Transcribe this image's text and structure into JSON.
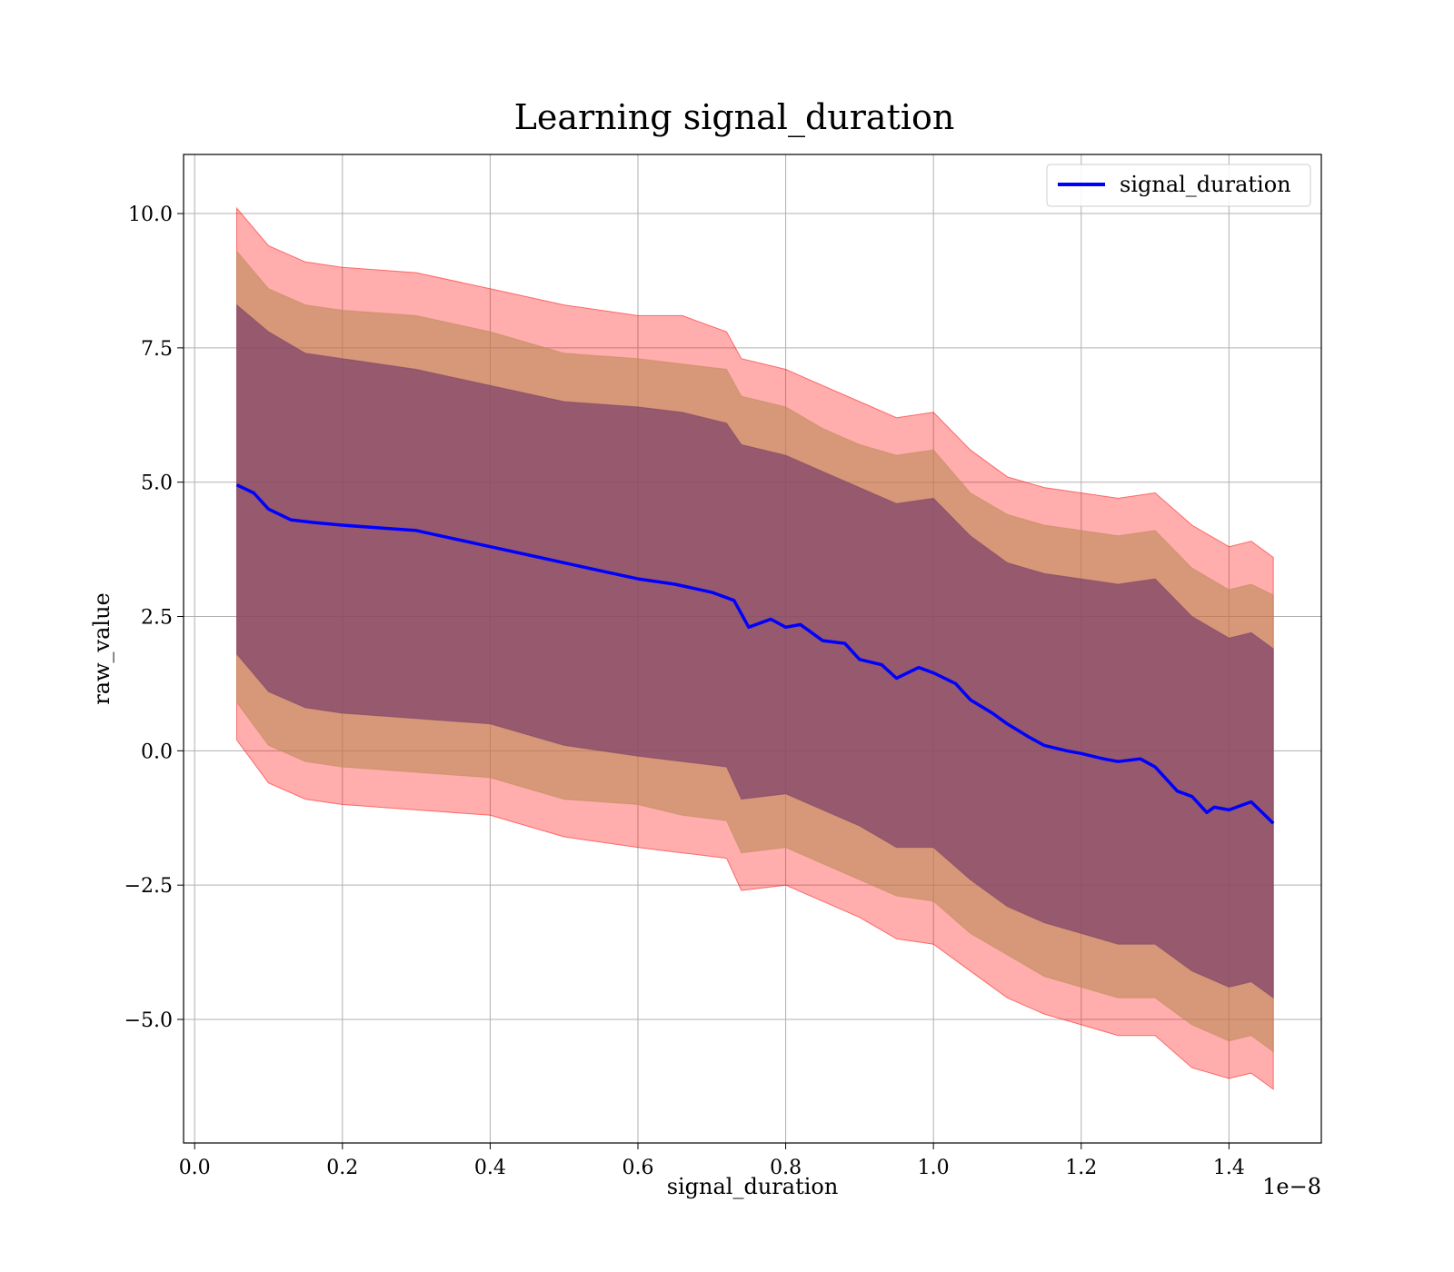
{
  "chart_data": {
    "type": "line",
    "title": "Learning signal_duration",
    "xlabel": "signal_duration",
    "ylabel": "raw_value",
    "x_offset_label": "1e−8",
    "xlim": [
      -0.015,
      1.525
    ],
    "ylim": [
      -7.3,
      11.1
    ],
    "grid": true,
    "legend_position": "top-right",
    "x_ticks": [
      {
        "value": 0.0,
        "label": "0.0"
      },
      {
        "value": 0.2,
        "label": "0.2"
      },
      {
        "value": 0.4,
        "label": "0.4"
      },
      {
        "value": 0.6,
        "label": "0.6"
      },
      {
        "value": 0.8,
        "label": "0.8"
      },
      {
        "value": 1.0,
        "label": "1.0"
      },
      {
        "value": 1.2,
        "label": "1.2"
      },
      {
        "value": 1.4,
        "label": "1.4"
      }
    ],
    "y_ticks": [
      {
        "value": 10.0,
        "label": "10.0"
      },
      {
        "value": 7.5,
        "label": "7.5"
      },
      {
        "value": 5.0,
        "label": "5.0"
      },
      {
        "value": 2.5,
        "label": "2.5"
      },
      {
        "value": 0.0,
        "label": "0.0"
      },
      {
        "value": -2.5,
        "label": "−2.5"
      },
      {
        "value": -5.0,
        "label": "−5.0"
      }
    ],
    "series": [
      {
        "name": "signal_duration",
        "color": "#0000ff",
        "x": [
          0.057,
          0.08,
          0.1,
          0.13,
          0.16,
          0.2,
          0.25,
          0.3,
          0.35,
          0.4,
          0.45,
          0.5,
          0.55,
          0.6,
          0.65,
          0.7,
          0.73,
          0.75,
          0.78,
          0.8,
          0.82,
          0.85,
          0.88,
          0.9,
          0.93,
          0.95,
          0.98,
          1.0,
          1.03,
          1.05,
          1.08,
          1.1,
          1.13,
          1.15,
          1.18,
          1.2,
          1.23,
          1.25,
          1.28,
          1.3,
          1.33,
          1.35,
          1.37,
          1.38,
          1.4,
          1.43,
          1.46
        ],
        "values": [
          4.95,
          4.8,
          4.5,
          4.3,
          4.25,
          4.2,
          4.15,
          4.1,
          3.95,
          3.8,
          3.65,
          3.5,
          3.35,
          3.2,
          3.1,
          2.95,
          2.8,
          2.3,
          2.45,
          2.3,
          2.35,
          2.05,
          2.0,
          1.7,
          1.6,
          1.35,
          1.55,
          1.45,
          1.25,
          0.95,
          0.7,
          0.5,
          0.25,
          0.1,
          0.0,
          -0.05,
          -0.15,
          -0.2,
          -0.15,
          -0.3,
          -0.75,
          -0.85,
          -1.15,
          -1.05,
          -1.1,
          -0.95,
          -1.35
        ]
      }
    ],
    "bands": [
      {
        "color": "#ff0000",
        "opacity": 0.32,
        "x": [
          0.057,
          0.1,
          0.15,
          0.2,
          0.3,
          0.4,
          0.5,
          0.6,
          0.66,
          0.72,
          0.74,
          0.8,
          0.85,
          0.9,
          0.95,
          1.0,
          1.05,
          1.1,
          1.15,
          1.2,
          1.25,
          1.3,
          1.35,
          1.4,
          1.43,
          1.46
        ],
        "upper": [
          10.1,
          9.4,
          9.1,
          9.0,
          8.9,
          8.6,
          8.3,
          8.1,
          8.1,
          7.8,
          7.3,
          7.1,
          6.8,
          6.5,
          6.2,
          6.3,
          5.6,
          5.1,
          4.9,
          4.8,
          4.7,
          4.8,
          4.2,
          3.8,
          3.9,
          3.6
        ],
        "lower": [
          0.2,
          -0.6,
          -0.9,
          -1.0,
          -1.1,
          -1.2,
          -1.6,
          -1.8,
          -1.9,
          -2.0,
          -2.6,
          -2.5,
          -2.8,
          -3.1,
          -3.5,
          -3.6,
          -4.1,
          -4.6,
          -4.9,
          -5.1,
          -5.3,
          -5.3,
          -5.9,
          -6.1,
          -6.0,
          -6.3
        ]
      },
      {
        "color": "#bb8b55",
        "opacity": 0.6,
        "x": [
          0.057,
          0.1,
          0.15,
          0.2,
          0.3,
          0.4,
          0.5,
          0.6,
          0.66,
          0.72,
          0.74,
          0.8,
          0.85,
          0.9,
          0.95,
          1.0,
          1.05,
          1.1,
          1.15,
          1.2,
          1.25,
          1.3,
          1.35,
          1.4,
          1.43,
          1.46
        ],
        "upper": [
          9.3,
          8.6,
          8.3,
          8.2,
          8.1,
          7.8,
          7.4,
          7.3,
          7.2,
          7.1,
          6.6,
          6.4,
          6.0,
          5.7,
          5.5,
          5.6,
          4.8,
          4.4,
          4.2,
          4.1,
          4.0,
          4.1,
          3.4,
          3.0,
          3.1,
          2.9
        ],
        "lower": [
          0.9,
          0.1,
          -0.2,
          -0.3,
          -0.4,
          -0.5,
          -0.9,
          -1.0,
          -1.2,
          -1.3,
          -1.9,
          -1.8,
          -2.1,
          -2.4,
          -2.7,
          -2.8,
          -3.4,
          -3.8,
          -4.2,
          -4.4,
          -4.6,
          -4.6,
          -5.1,
          -5.4,
          -5.3,
          -5.6
        ]
      },
      {
        "color": "#7b3f6a",
        "opacity": 0.7,
        "x": [
          0.057,
          0.1,
          0.15,
          0.2,
          0.3,
          0.4,
          0.5,
          0.6,
          0.66,
          0.72,
          0.74,
          0.8,
          0.85,
          0.9,
          0.95,
          1.0,
          1.05,
          1.1,
          1.15,
          1.2,
          1.25,
          1.3,
          1.35,
          1.4,
          1.43,
          1.46
        ],
        "upper": [
          8.3,
          7.8,
          7.4,
          7.3,
          7.1,
          6.8,
          6.5,
          6.4,
          6.3,
          6.1,
          5.7,
          5.5,
          5.2,
          4.9,
          4.6,
          4.7,
          4.0,
          3.5,
          3.3,
          3.2,
          3.1,
          3.2,
          2.5,
          2.1,
          2.2,
          1.9
        ],
        "lower": [
          1.8,
          1.1,
          0.8,
          0.7,
          0.6,
          0.5,
          0.1,
          -0.1,
          -0.2,
          -0.3,
          -0.9,
          -0.8,
          -1.1,
          -1.4,
          -1.8,
          -1.8,
          -2.4,
          -2.9,
          -3.2,
          -3.4,
          -3.6,
          -3.6,
          -4.1,
          -4.4,
          -4.3,
          -4.6
        ]
      }
    ]
  }
}
